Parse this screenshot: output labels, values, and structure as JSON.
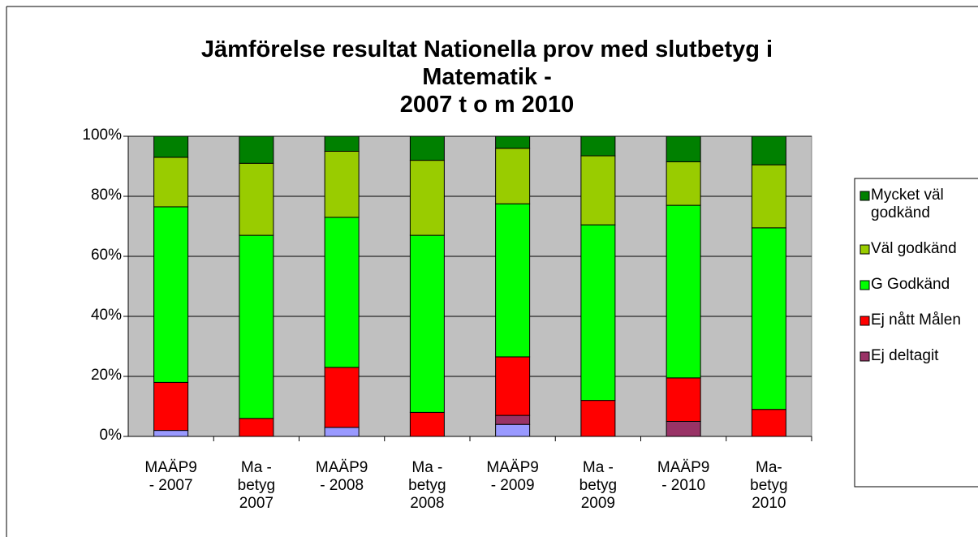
{
  "chart_data": {
    "type": "stacked_bar",
    "title": "Jämförelse resultat Nationella prov med slutbetyg i\nMatematik  -\n2007 t o m 2010",
    "categories": [
      "MAÄP9 - 2007",
      "Ma - betyg 2007",
      "MAÄP9 - 2008",
      "Ma - betyg 2008",
      "MAÄP9 - 2009",
      "Ma - betyg 2009",
      "MAÄP9 - 2010",
      "Ma- betyg 2010"
    ],
    "series": [
      {
        "name": null,
        "color": "#9999ff",
        "values": [
          2,
          0,
          3,
          0,
          4,
          0,
          0,
          0
        ]
      },
      {
        "name": "Ej deltagit",
        "color": "#993366",
        "values": [
          0,
          0,
          0,
          0,
          3,
          0,
          5,
          0
        ]
      },
      {
        "name": "Ej nått Målen",
        "color": "#ff0000",
        "values": [
          16,
          6,
          20,
          8,
          19.5,
          12,
          14.5,
          9
        ]
      },
      {
        "name": "G Godkänd",
        "color": "#00ff00",
        "values": [
          58.5,
          61,
          50,
          59,
          51,
          58.5,
          57.5,
          60.5
        ]
      },
      {
        "name": "Väl godkänd",
        "color": "#99cc00",
        "values": [
          16.5,
          24,
          22,
          25,
          18.5,
          23,
          14.5,
          21
        ]
      },
      {
        "name": "Mycket väl godkänd",
        "color": "#008000",
        "values": [
          7,
          9,
          5,
          8,
          4,
          6.5,
          8.5,
          9.5
        ]
      }
    ],
    "ylim": [
      0,
      100
    ],
    "yticks": [
      {
        "value": 0,
        "label": "0%"
      },
      {
        "value": 20,
        "label": "20%"
      },
      {
        "value": 40,
        "label": "40%"
      },
      {
        "value": 60,
        "label": "60%"
      },
      {
        "value": 80,
        "label": "80%"
      },
      {
        "value": 100,
        "label": "100%"
      }
    ],
    "grid": true,
    "legend": "right"
  }
}
